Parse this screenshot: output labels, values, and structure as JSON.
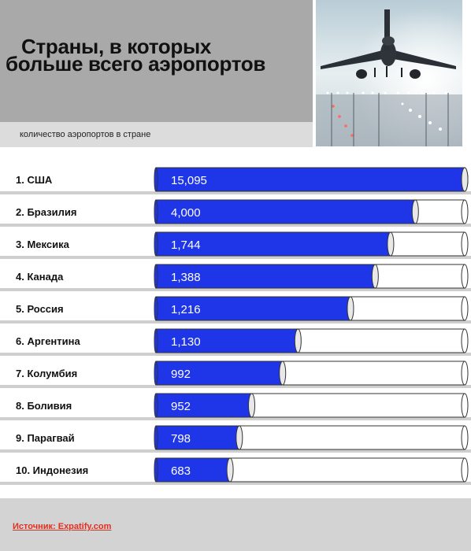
{
  "header": {
    "title_line1": "Страны, в которых",
    "title_line2": "больше всего аэропортов",
    "subtitle": "количество аэропортов в стране"
  },
  "footer": {
    "source": "Источник: Expatify.com"
  },
  "colors": {
    "bar_fill": "#1f35e8",
    "header_bg": "#a9a9a9",
    "row_bg": "#d4d4d4"
  },
  "chart_data": {
    "type": "bar",
    "orientation": "horizontal",
    "title": "Страны, в которых больше всего аэропортов",
    "subtitle": "количество аэропортов в стране",
    "categories": [
      "1. США",
      "2. Бразилия",
      "3. Мексика",
      "4. Канада",
      "5. Россия",
      "6. Аргентина",
      "7. Колумбия",
      "8. Боливия",
      "9. Парагвай",
      "10. Индонезия"
    ],
    "values": [
      15095,
      4000,
      1744,
      1388,
      1216,
      1130,
      992,
      952,
      798,
      683
    ],
    "value_labels": [
      "15,095",
      "4,000",
      "1,744",
      "1,388",
      "1,216",
      "1,130",
      "992",
      "952",
      "798",
      "683"
    ],
    "fill_fraction": [
      1.0,
      0.84,
      0.76,
      0.71,
      0.63,
      0.46,
      0.41,
      0.31,
      0.27,
      0.24
    ],
    "grid": false,
    "legend": "none"
  }
}
